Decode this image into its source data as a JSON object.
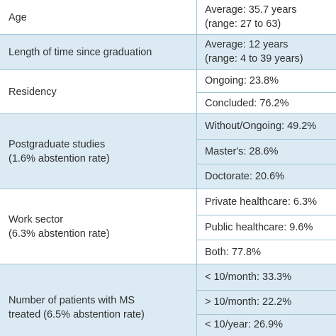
{
  "rows": [
    {
      "label": [
        "Age"
      ],
      "values": [
        [
          "Average: 35.7 years",
          "(range: 27 to 63)"
        ]
      ]
    },
    {
      "label": [
        "Length of time since graduation"
      ],
      "values": [
        [
          "Average: 12 years",
          "(range: 4 to 39 years)"
        ]
      ]
    },
    {
      "label": [
        "Residency"
      ],
      "values": [
        [
          "Ongoing: 23.8%"
        ],
        [
          "Concluded: 76.2%"
        ]
      ]
    },
    {
      "label": [
        "Postgraduate studies",
        "(1.6% abstention rate)"
      ],
      "values": [
        [
          "Without/Ongoing: 49.2%"
        ],
        [
          "Master's: 28.6%"
        ],
        [
          "Doctorate: 20.6%"
        ]
      ]
    },
    {
      "label": [
        "Work sector",
        "(6.3% abstention rate)"
      ],
      "values": [
        [
          "Private healthcare: 6.3%"
        ],
        [
          "Public healthcare: 9.6%"
        ],
        [
          "Both: 77.8%"
        ]
      ]
    },
    {
      "label": [
        "Number of patients with MS",
        "treated (6.5% abstention rate)"
      ],
      "values": [
        [
          "< 10/month: 33.3%"
        ],
        [
          "> 10/month: 22.2%"
        ],
        [
          "< 10/year: 26.9%"
        ]
      ]
    }
  ]
}
